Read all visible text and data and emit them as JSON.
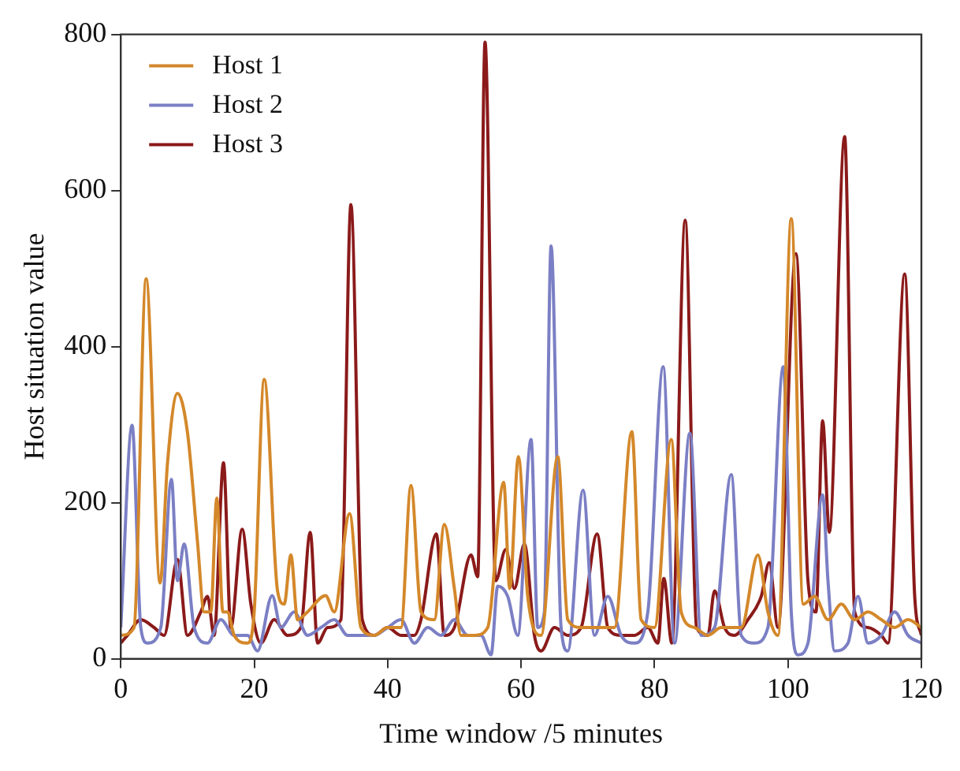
{
  "chart_data": {
    "type": "line",
    "xlabel": "Time window /5 minutes",
    "ylabel": "Host situation value",
    "xlim": [
      0,
      120
    ],
    "xticks": [
      0,
      20,
      40,
      60,
      80,
      100,
      120
    ],
    "ylim": [
      0,
      800
    ],
    "yticks": [
      0,
      200,
      400,
      600,
      800
    ],
    "grid": false,
    "legend": "top left",
    "marker": "none",
    "line_style": "solid",
    "series": [
      {
        "name": "Host 1",
        "color": "#d4882a",
        "x": [
          0,
          2,
          3.8,
          5.9,
          7,
          8.5,
          10,
          11.5,
          12.5,
          13.5,
          14.4,
          15.3,
          16,
          17,
          19,
          20,
          21.5,
          23.5,
          24.5,
          25.5,
          26.5,
          28,
          30.7,
          32,
          34.3,
          36,
          38,
          40,
          42,
          43.5,
          45,
          47,
          48.5,
          50,
          51,
          53,
          55,
          57.4,
          58.3,
          59.6,
          61,
          63,
          65.5,
          67,
          69,
          72,
          74,
          76.6,
          78,
          80,
          82.5,
          84,
          86,
          88,
          90,
          93,
          95.5,
          97,
          98.5,
          100.5,
          102.3,
          104,
          106,
          108,
          110,
          112,
          114,
          116,
          118,
          120
        ],
        "values": [
          30,
          40,
          487,
          97,
          250,
          340,
          290,
          150,
          60,
          60,
          206,
          60,
          60,
          30,
          20,
          60,
          358,
          87,
          70,
          133,
          50,
          60,
          81,
          60,
          186,
          40,
          30,
          40,
          40,
          222,
          60,
          50,
          172,
          90,
          30,
          30,
          40,
          226,
          90,
          259,
          80,
          30,
          259,
          50,
          40,
          40,
          40,
          291,
          50,
          40,
          281,
          60,
          40,
          30,
          40,
          40,
          133,
          60,
          30,
          564,
          70,
          80,
          50,
          70,
          50,
          60,
          50,
          40,
          50,
          40
        ]
      },
      {
        "name": "Host 2",
        "color": "#7b7fc4",
        "x": [
          0,
          1.7,
          3,
          4,
          6,
          7.6,
          8.5,
          9.5,
          11,
          13,
          15,
          17,
          19,
          20.5,
          22.7,
          24,
          26,
          28,
          30,
          32,
          34,
          36,
          38,
          40,
          42,
          44,
          46,
          48,
          50,
          52,
          54,
          55.5,
          56.5,
          58,
          59.5,
          61.5,
          62.5,
          63.5,
          64.5,
          66,
          67,
          69.3,
          71,
          73,
          75,
          77,
          79,
          81.3,
          83,
          85.3,
          87,
          89,
          91.5,
          93,
          95,
          97,
          99.3,
          100.5,
          101.5,
          103,
          105.2,
          106,
          107,
          109,
          110.5,
          112,
          114,
          116,
          118,
          120
        ],
        "values": [
          40,
          299,
          40,
          20,
          40,
          230,
          100,
          147,
          40,
          20,
          50,
          30,
          30,
          10,
          81,
          40,
          60,
          30,
          40,
          50,
          30,
          30,
          30,
          40,
          50,
          20,
          40,
          30,
          50,
          30,
          30,
          5,
          93,
          80,
          30,
          281,
          40,
          60,
          529,
          40,
          10,
          216,
          30,
          80,
          30,
          20,
          60,
          374,
          20,
          289,
          30,
          40,
          236,
          30,
          20,
          40,
          374,
          60,
          5,
          20,
          210,
          100,
          10,
          20,
          80,
          20,
          30,
          60,
          30,
          20
        ]
      },
      {
        "name": "Host 3",
        "color": "#8b1a1a",
        "x": [
          0,
          1,
          3,
          5,
          6.5,
          8.5,
          10,
          12,
          13,
          14,
          15.4,
          16.5,
          18.2,
          19.5,
          21,
          23,
          25,
          27,
          28.4,
          29.5,
          31,
          33,
          34.5,
          36.2,
          38,
          40,
          42,
          44,
          45,
          47.3,
          48.5,
          50,
          52.5,
          53.5,
          54.6,
          56.2,
          57.7,
          59,
          60.5,
          62,
          63,
          65,
          67,
          69,
          71.4,
          73,
          75,
          77,
          79,
          80.5,
          81.4,
          82.6,
          84.6,
          86.3,
          88,
          89,
          90.5,
          92,
          94,
          96,
          97.2,
          98.5,
          101.2,
          103,
          104.2,
          105.2,
          106.2,
          108.5,
          110,
          112,
          114,
          115,
          117.5,
          119,
          120
        ],
        "values": [
          20,
          30,
          50,
          40,
          30,
          127,
          30,
          60,
          80,
          30,
          251,
          40,
          166,
          70,
          20,
          50,
          30,
          40,
          162,
          20,
          40,
          50,
          582,
          50,
          30,
          40,
          30,
          30,
          50,
          160,
          30,
          40,
          133,
          105,
          790,
          100,
          140,
          90,
          147,
          30,
          10,
          40,
          30,
          40,
          160,
          40,
          30,
          30,
          40,
          20,
          103,
          20,
          562,
          40,
          30,
          87,
          40,
          30,
          50,
          80,
          123,
          40,
          519,
          100,
          60,
          305,
          162,
          669,
          60,
          40,
          30,
          20,
          493,
          80,
          30
        ]
      }
    ]
  }
}
